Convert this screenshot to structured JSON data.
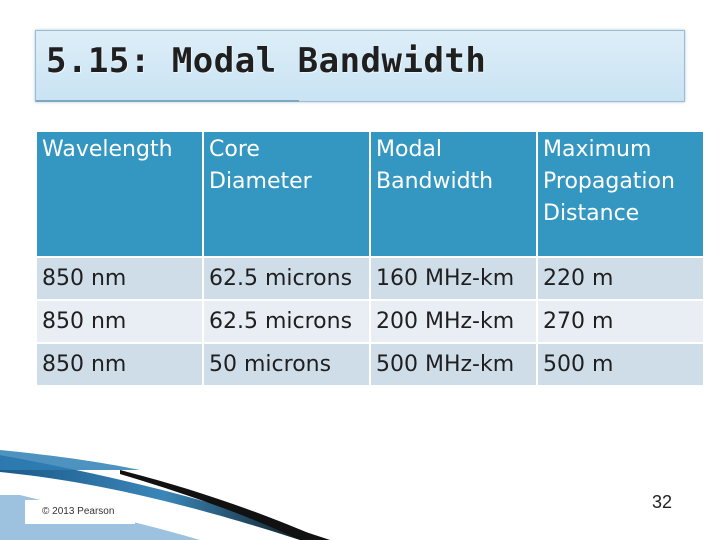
{
  "slide": {
    "title": "5.15: Modal Bandwidth",
    "copyright": "© 2013 Pearson",
    "page_number": "32"
  },
  "table": {
    "headers": [
      "Wavelength",
      "Core Diameter",
      "Modal Bandwidth",
      "Maximum Propagation Distance"
    ],
    "rows": [
      [
        "850 nm",
        "62.5 microns",
        "160 MHz-km",
        "220 m"
      ],
      [
        "850 nm",
        "62.5 microns",
        "200 MHz-km",
        "270 m"
      ],
      [
        "850 nm",
        "50 microns",
        "500 MHz-km",
        "500 m"
      ]
    ]
  },
  "colors": {
    "header_bg": "#3497c1",
    "row_dark": "#cfdde8",
    "row_light": "#e8eef3",
    "title_bg": "#d4e9f6"
  }
}
